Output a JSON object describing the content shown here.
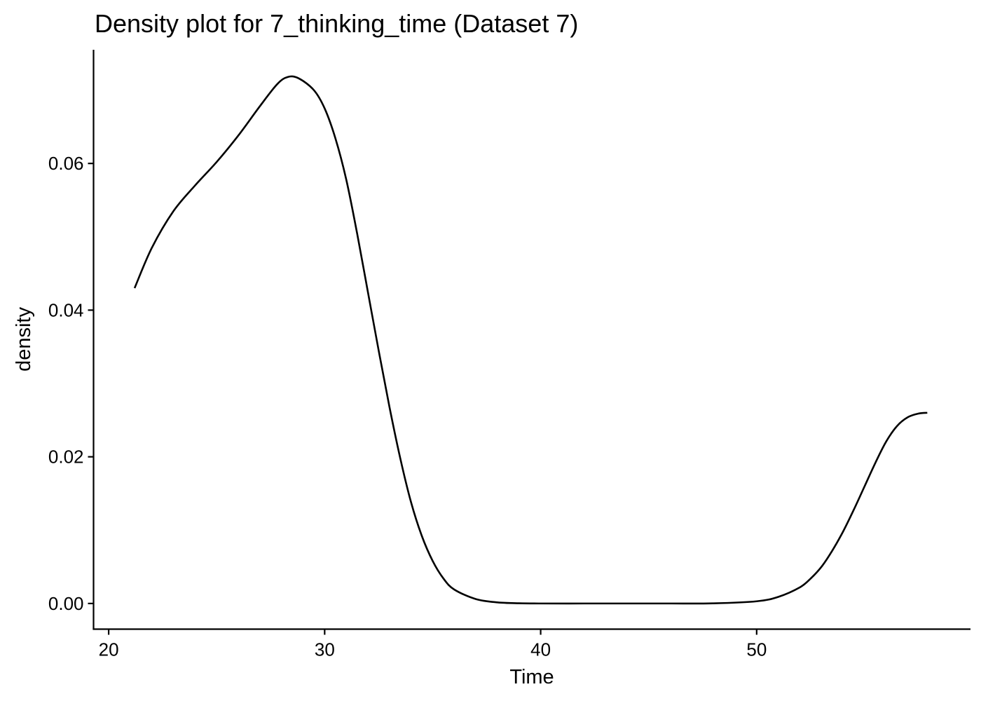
{
  "chart_data": {
    "type": "line",
    "title": "Density plot for 7_thinking_time (Dataset 7)",
    "xlabel": "Time",
    "ylabel": "density",
    "xlim": [
      19.3,
      59.9
    ],
    "ylim": [
      -0.0035,
      0.0755
    ],
    "x_ticks": [
      20,
      30,
      40,
      50
    ],
    "x_tick_labels": [
      "20",
      "30",
      "40",
      "50"
    ],
    "y_ticks": [
      0,
      0.02,
      0.04,
      0.06
    ],
    "y_tick_labels": [
      "0.00",
      "0.02",
      "0.04",
      "0.06"
    ],
    "grid": false,
    "legend": "none",
    "series": [
      {
        "color": "#000000",
        "x": [
          21.2,
          22.0,
          23.0,
          24.0,
          25.0,
          26.0,
          27.0,
          27.8,
          28.3,
          28.8,
          29.5,
          30.0,
          30.5,
          31.0,
          31.5,
          32.0,
          32.5,
          33.0,
          33.5,
          34.0,
          34.5,
          35.0,
          35.5,
          36.0,
          37.0,
          38.0,
          39.0,
          40.0,
          42.0,
          44.0,
          46.0,
          48.0,
          50.0,
          51.0,
          52.0,
          52.5,
          53.0,
          53.5,
          54.0,
          54.5,
          55.0,
          55.5,
          56.0,
          56.5,
          57.0,
          57.5,
          57.9
        ],
        "y": [
          0.043,
          0.0485,
          0.0535,
          0.057,
          0.0602,
          0.0638,
          0.0678,
          0.0708,
          0.0718,
          0.0716,
          0.07,
          0.0675,
          0.0634,
          0.0578,
          0.0505,
          0.0425,
          0.0345,
          0.0268,
          0.0198,
          0.0138,
          0.0092,
          0.0058,
          0.0034,
          0.0019,
          0.0006,
          0.00015,
          3e-05,
          0.0,
          0.0,
          0.0,
          0.0,
          2e-05,
          0.0003,
          0.0009,
          0.0022,
          0.0034,
          0.005,
          0.0072,
          0.0098,
          0.0128,
          0.016,
          0.0192,
          0.0221,
          0.0242,
          0.0254,
          0.0259,
          0.026
        ]
      }
    ]
  }
}
